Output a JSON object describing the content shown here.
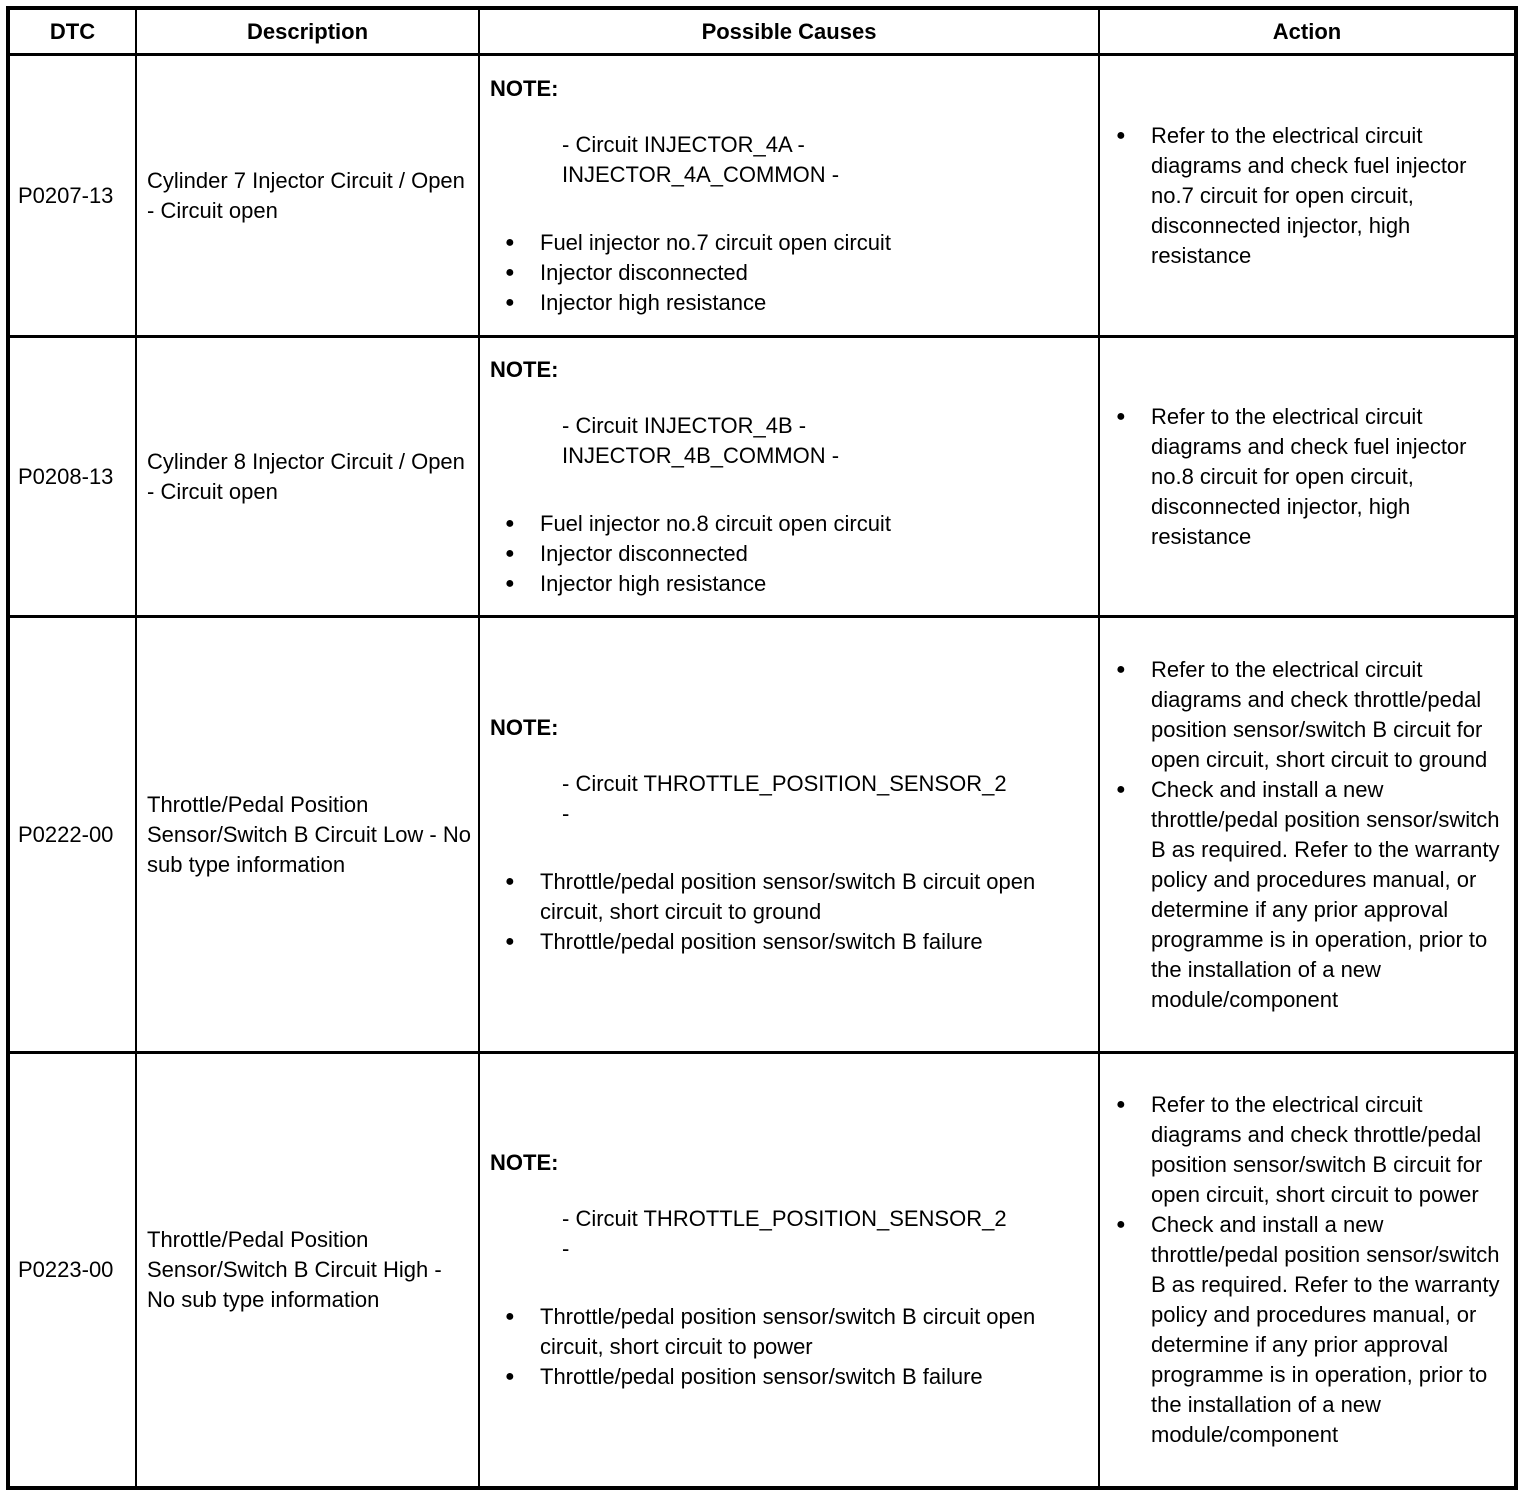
{
  "icons": {
    "bullet": "●"
  },
  "colors": {
    "border": "#000000",
    "text": "#000000",
    "background": "#ffffff"
  },
  "table": {
    "headers": [
      "DTC",
      "Description",
      "Possible Causes",
      "Action"
    ],
    "rows": [
      {
        "dtc": "P0207-13",
        "description": "Cylinder 7 Injector Circuit / Open - Circuit open",
        "note_label": "NOTE:",
        "note_lines": [
          "- Circuit INJECTOR_4A -",
          "INJECTOR_4A_COMMON -"
        ],
        "causes": [
          "Fuel injector no.7 circuit open circuit",
          "Injector disconnected",
          "Injector high resistance"
        ],
        "actions": [
          "Refer to the electrical circuit diagrams and check fuel injector no.7 circuit for open circuit, disconnected injector, high resistance"
        ]
      },
      {
        "dtc": "P0208-13",
        "description": "Cylinder 8 Injector Circuit / Open - Circuit open",
        "note_label": "NOTE:",
        "note_lines": [
          "- Circuit INJECTOR_4B -",
          "INJECTOR_4B_COMMON -"
        ],
        "causes": [
          "Fuel injector no.8 circuit open circuit",
          "Injector disconnected",
          "Injector high resistance"
        ],
        "actions": [
          "Refer to the electrical circuit diagrams and check fuel injector no.8 circuit for open circuit, disconnected injector, high resistance"
        ]
      },
      {
        "dtc": "P0222-00",
        "description": "Throttle/Pedal Position Sensor/Switch B Circuit Low - No sub type information",
        "note_label": "NOTE:",
        "note_lines": [
          "- Circuit THROTTLE_POSITION_SENSOR_2",
          "-"
        ],
        "causes": [
          "Throttle/pedal position sensor/switch B circuit open circuit, short circuit to ground",
          "Throttle/pedal position sensor/switch B failure"
        ],
        "actions": [
          "Refer to the electrical circuit diagrams and check throttle/pedal position sensor/switch B circuit for open circuit, short circuit to ground",
          "Check and install a new throttle/pedal position sensor/switch B as required. Refer to the warranty policy and procedures manual, or determine if any prior approval programme is in operation, prior to the installation of a new module/component"
        ]
      },
      {
        "dtc": "P0223-00",
        "description": "Throttle/Pedal Position Sensor/Switch B Circuit High - No sub type information",
        "note_label": "NOTE:",
        "note_lines": [
          "- Circuit THROTTLE_POSITION_SENSOR_2",
          "-"
        ],
        "causes": [
          "Throttle/pedal position sensor/switch B circuit open circuit, short circuit to power",
          "Throttle/pedal position sensor/switch B failure"
        ],
        "actions": [
          "Refer to the electrical circuit diagrams and check throttle/pedal position sensor/switch B circuit for open circuit, short circuit to power",
          "Check and install a new throttle/pedal position sensor/switch B as required. Refer to the warranty policy and procedures manual, or determine if any prior approval programme is in operation, prior to the installation of a new module/component"
        ]
      }
    ]
  }
}
